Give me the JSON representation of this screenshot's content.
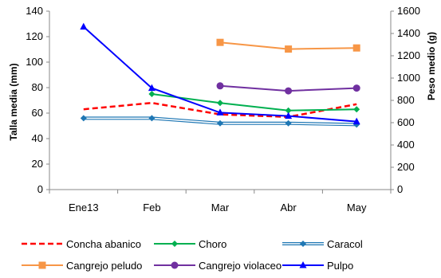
{
  "chart_data": {
    "type": "line",
    "categories": [
      "Ene13",
      "Feb",
      "Mar",
      "Abr",
      "May"
    ],
    "ylabel_left": "Talla media (mm)",
    "ylabel_right": "Peso medio (g)",
    "ylim_left": [
      0,
      140
    ],
    "ylim_right": [
      0,
      1600
    ],
    "yticks_left": [
      0,
      20,
      40,
      60,
      80,
      100,
      120,
      140
    ],
    "yticks_right": [
      0,
      200,
      400,
      600,
      800,
      1000,
      1200,
      1400,
      1600
    ],
    "grid": false,
    "legend_position": "bottom",
    "series": [
      {
        "name": "Concha abanico",
        "axis": "left",
        "color": "#ff0000",
        "dash": true,
        "marker": "none",
        "values": [
          63,
          68,
          59,
          57,
          67
        ]
      },
      {
        "name": "Choro",
        "axis": "left",
        "color": "#00b050",
        "dash": false,
        "marker": "diamond",
        "values": [
          null,
          75,
          68,
          62,
          63
        ]
      },
      {
        "name": "Caracol",
        "axis": "left",
        "color": "#1f77b4",
        "double": true,
        "marker": "diamond",
        "values": [
          56,
          56,
          52,
          52,
          51
        ]
      },
      {
        "name": "Cangrejo peludo",
        "axis": "right",
        "color": "#f79646",
        "marker": "square",
        "values": [
          null,
          null,
          1320,
          1260,
          1270
        ]
      },
      {
        "name": "Cangrejo violaceo",
        "axis": "right",
        "color": "#7030a0",
        "marker": "circle",
        "values": [
          null,
          null,
          930,
          885,
          910
        ]
      },
      {
        "name": "Pulpo",
        "axis": "right",
        "color": "#0000ff",
        "marker": "triangle",
        "values": [
          1460,
          910,
          690,
          660,
          610
        ]
      }
    ]
  }
}
